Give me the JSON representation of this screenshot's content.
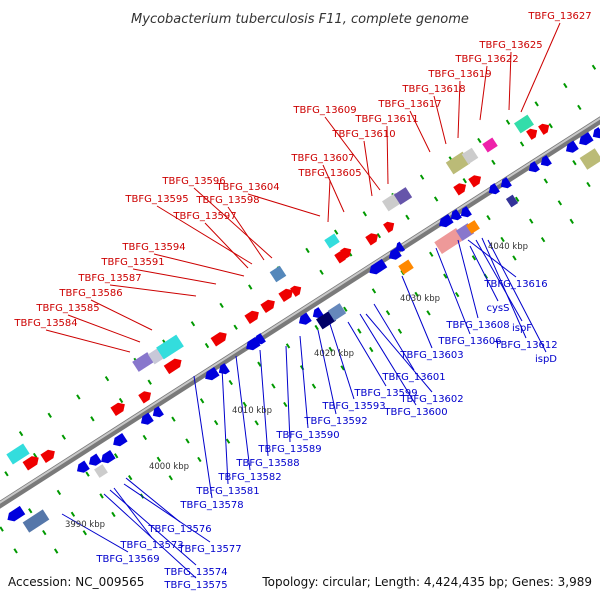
{
  "title": "Mycobacterium tuberculosis F11, complete genome",
  "footer": {
    "accession": "Accession: NC_009565",
    "summary": "Topology: circular; Length: 4,424,435 bp; Genes: 3,989"
  },
  "colors": {
    "forward_label": "#cc0000",
    "reverse_label": "#0000cc",
    "forward_gene": "#ee0000",
    "reverse_gene": "#0000dd",
    "backbone": "#999999",
    "tick_dot": "#009900"
  },
  "ticks": [
    "3990 kbp",
    "4000 kbp",
    "4010 kbp",
    "4020 kbp",
    "4030 kbp",
    "4040 kbp"
  ],
  "forward_labels": [
    "TBFG_13627",
    "TBFG_13625",
    "TBFG_13622",
    "TBFG_13619",
    "TBFG_13618",
    "TBFG_13617",
    "TBFG_13611",
    "TBFG_13609",
    "TBFG_13610",
    "TBFG_13607",
    "TBFG_13605",
    "TBFG_13596",
    "TBFG_13604",
    "TBFG_13595",
    "TBFG_13598",
    "TBFG_13597",
    "TBFG_13594",
    "TBFG_13591",
    "TBFG_13587",
    "TBFG_13586",
    "TBFG_13585",
    "TBFG_13584"
  ],
  "reverse_labels": [
    "TBFG_13616",
    "cysS",
    "ispF",
    "TBFG_13608",
    "TBFG_13612",
    "ispD",
    "TBFG_13606",
    "TBFG_13603",
    "TBFG_13601",
    "TBFG_13602",
    "TBFG_13599",
    "TBFG_13600",
    "TBFG_13593",
    "TBFG_13592",
    "TBFG_13590",
    "TBFG_13589",
    "TBFG_13588",
    "TBFG_13582",
    "TBFG_13581",
    "TBFG_13578",
    "TBFG_13576",
    "TBFG_13573",
    "TBFG_13577",
    "TBFG_13569",
    "TBFG_13574",
    "TBFG_13575"
  ]
}
